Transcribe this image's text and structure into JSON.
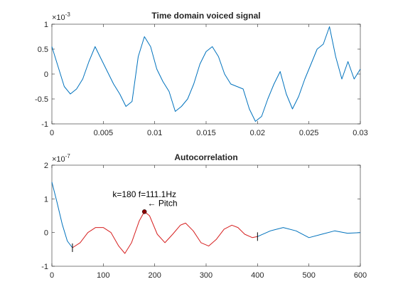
{
  "chart_data": [
    {
      "type": "line",
      "title": "Time domain voiced signal",
      "xlabel": "",
      "ylabel": "",
      "xlim": [
        0,
        0.03
      ],
      "ylim": [
        -1,
        1
      ],
      "y_exponent": "×10",
      "y_exponent_power": "-3",
      "xticks": [
        {
          "value": 0,
          "label": "0"
        },
        {
          "value": 0.005,
          "label": "0.005"
        },
        {
          "value": 0.01,
          "label": "0.01"
        },
        {
          "value": 0.015,
          "label": "0.015"
        },
        {
          "value": 0.02,
          "label": "0.02"
        },
        {
          "value": 0.025,
          "label": "0.025"
        },
        {
          "value": 0.03,
          "label": "0.03"
        }
      ],
      "yticks": [
        {
          "value": 1,
          "label": "1"
        },
        {
          "value": 0.5,
          "label": "0.5"
        },
        {
          "value": 0,
          "label": "0"
        },
        {
          "value": -0.5,
          "label": "-0.5"
        },
        {
          "value": -1,
          "label": "-1"
        }
      ],
      "grid": false,
      "series": [
        {
          "color": "#0072BD",
          "x": [
            0,
            0.0006,
            0.0012,
            0.0018,
            0.0024,
            0.003,
            0.0036,
            0.0042,
            0.0048,
            0.0054,
            0.006,
            0.0066,
            0.0072,
            0.0078,
            0.0084,
            0.009,
            0.0096,
            0.0102,
            0.0108,
            0.0114,
            0.012,
            0.0126,
            0.0132,
            0.0138,
            0.0144,
            0.015,
            0.0156,
            0.0162,
            0.0168,
            0.0174,
            0.018,
            0.0186,
            0.0192,
            0.0198,
            0.0204,
            0.021,
            0.0216,
            0.0222,
            0.0228,
            0.0234,
            0.024,
            0.0246,
            0.0252,
            0.0258,
            0.0264,
            0.027,
            0.0276,
            0.0282,
            0.0288,
            0.0294,
            0.03
          ],
          "y": [
            0.55,
            0.15,
            -0.25,
            -0.4,
            -0.3,
            -0.1,
            0.25,
            0.55,
            0.3,
            0.05,
            -0.2,
            -0.4,
            -0.65,
            -0.55,
            0.35,
            0.75,
            0.55,
            0.1,
            -0.15,
            -0.35,
            -0.75,
            -0.65,
            -0.5,
            -0.2,
            0.2,
            0.45,
            0.55,
            0.35,
            0.0,
            -0.2,
            -0.25,
            -0.3,
            -0.7,
            -0.95,
            -0.85,
            -0.5,
            -0.2,
            0.05,
            -0.4,
            -0.7,
            -0.45,
            -0.1,
            0.2,
            0.5,
            0.6,
            0.95,
            0.35,
            -0.1,
            0.25,
            -0.1,
            0.1
          ]
        }
      ]
    },
    {
      "type": "line",
      "title": "Autocorrelation",
      "xlabel": "",
      "ylabel": "",
      "xlim": [
        0,
        600
      ],
      "ylim": [
        -1,
        2
      ],
      "y_exponent": "×10",
      "y_exponent_power": "-7",
      "xticks": [
        {
          "value": 0,
          "label": "0"
        },
        {
          "value": 100,
          "label": "100"
        },
        {
          "value": 200,
          "label": "200"
        },
        {
          "value": 300,
          "label": "300"
        },
        {
          "value": 400,
          "label": "400"
        },
        {
          "value": 500,
          "label": "500"
        },
        {
          "value": 600,
          "label": "600"
        }
      ],
      "yticks": [
        {
          "value": 2,
          "label": "2"
        },
        {
          "value": 1,
          "label": "1"
        },
        {
          "value": 0,
          "label": "0"
        },
        {
          "value": -1,
          "label": "-1"
        }
      ],
      "grid": false,
      "series": [
        {
          "color": "#0072BD",
          "x": [
            0,
            10,
            20,
            30,
            40
          ],
          "y": [
            1.5,
            0.9,
            0.25,
            -0.25,
            -0.45
          ]
        },
        {
          "color": "#D62020",
          "x": [
            40,
            55,
            70,
            85,
            100,
            115,
            130,
            142,
            155,
            170,
            180,
            190,
            205,
            220,
            235,
            250,
            260,
            275,
            290,
            305,
            320,
            335,
            350,
            362,
            375,
            390,
            400
          ],
          "y": [
            -0.45,
            -0.3,
            0.0,
            0.15,
            0.15,
            0.0,
            -0.4,
            -0.62,
            -0.3,
            0.35,
            0.62,
            0.5,
            -0.05,
            -0.3,
            -0.05,
            0.22,
            0.28,
            0.05,
            -0.3,
            -0.4,
            -0.2,
            0.1,
            0.22,
            0.15,
            -0.05,
            -0.15,
            -0.12
          ]
        },
        {
          "color": "#0072BD",
          "x": [
            400,
            425,
            450,
            475,
            500,
            525,
            550,
            575,
            600
          ],
          "y": [
            -0.12,
            0.05,
            0.15,
            0.05,
            -0.15,
            -0.05,
            0.05,
            -0.02,
            0.0
          ]
        }
      ],
      "range_markers": [
        {
          "x": 40,
          "y": -0.45
        },
        {
          "x": 400,
          "y": -0.12
        }
      ],
      "peak": {
        "x": 180,
        "y": 0.62,
        "color": "#8B0000"
      },
      "annotations": [
        {
          "text": "k=180 f=111.1Hz",
          "x": 180,
          "y": 1.05
        },
        {
          "text": "← Pitch",
          "x": 186,
          "y": 0.78
        }
      ]
    }
  ]
}
